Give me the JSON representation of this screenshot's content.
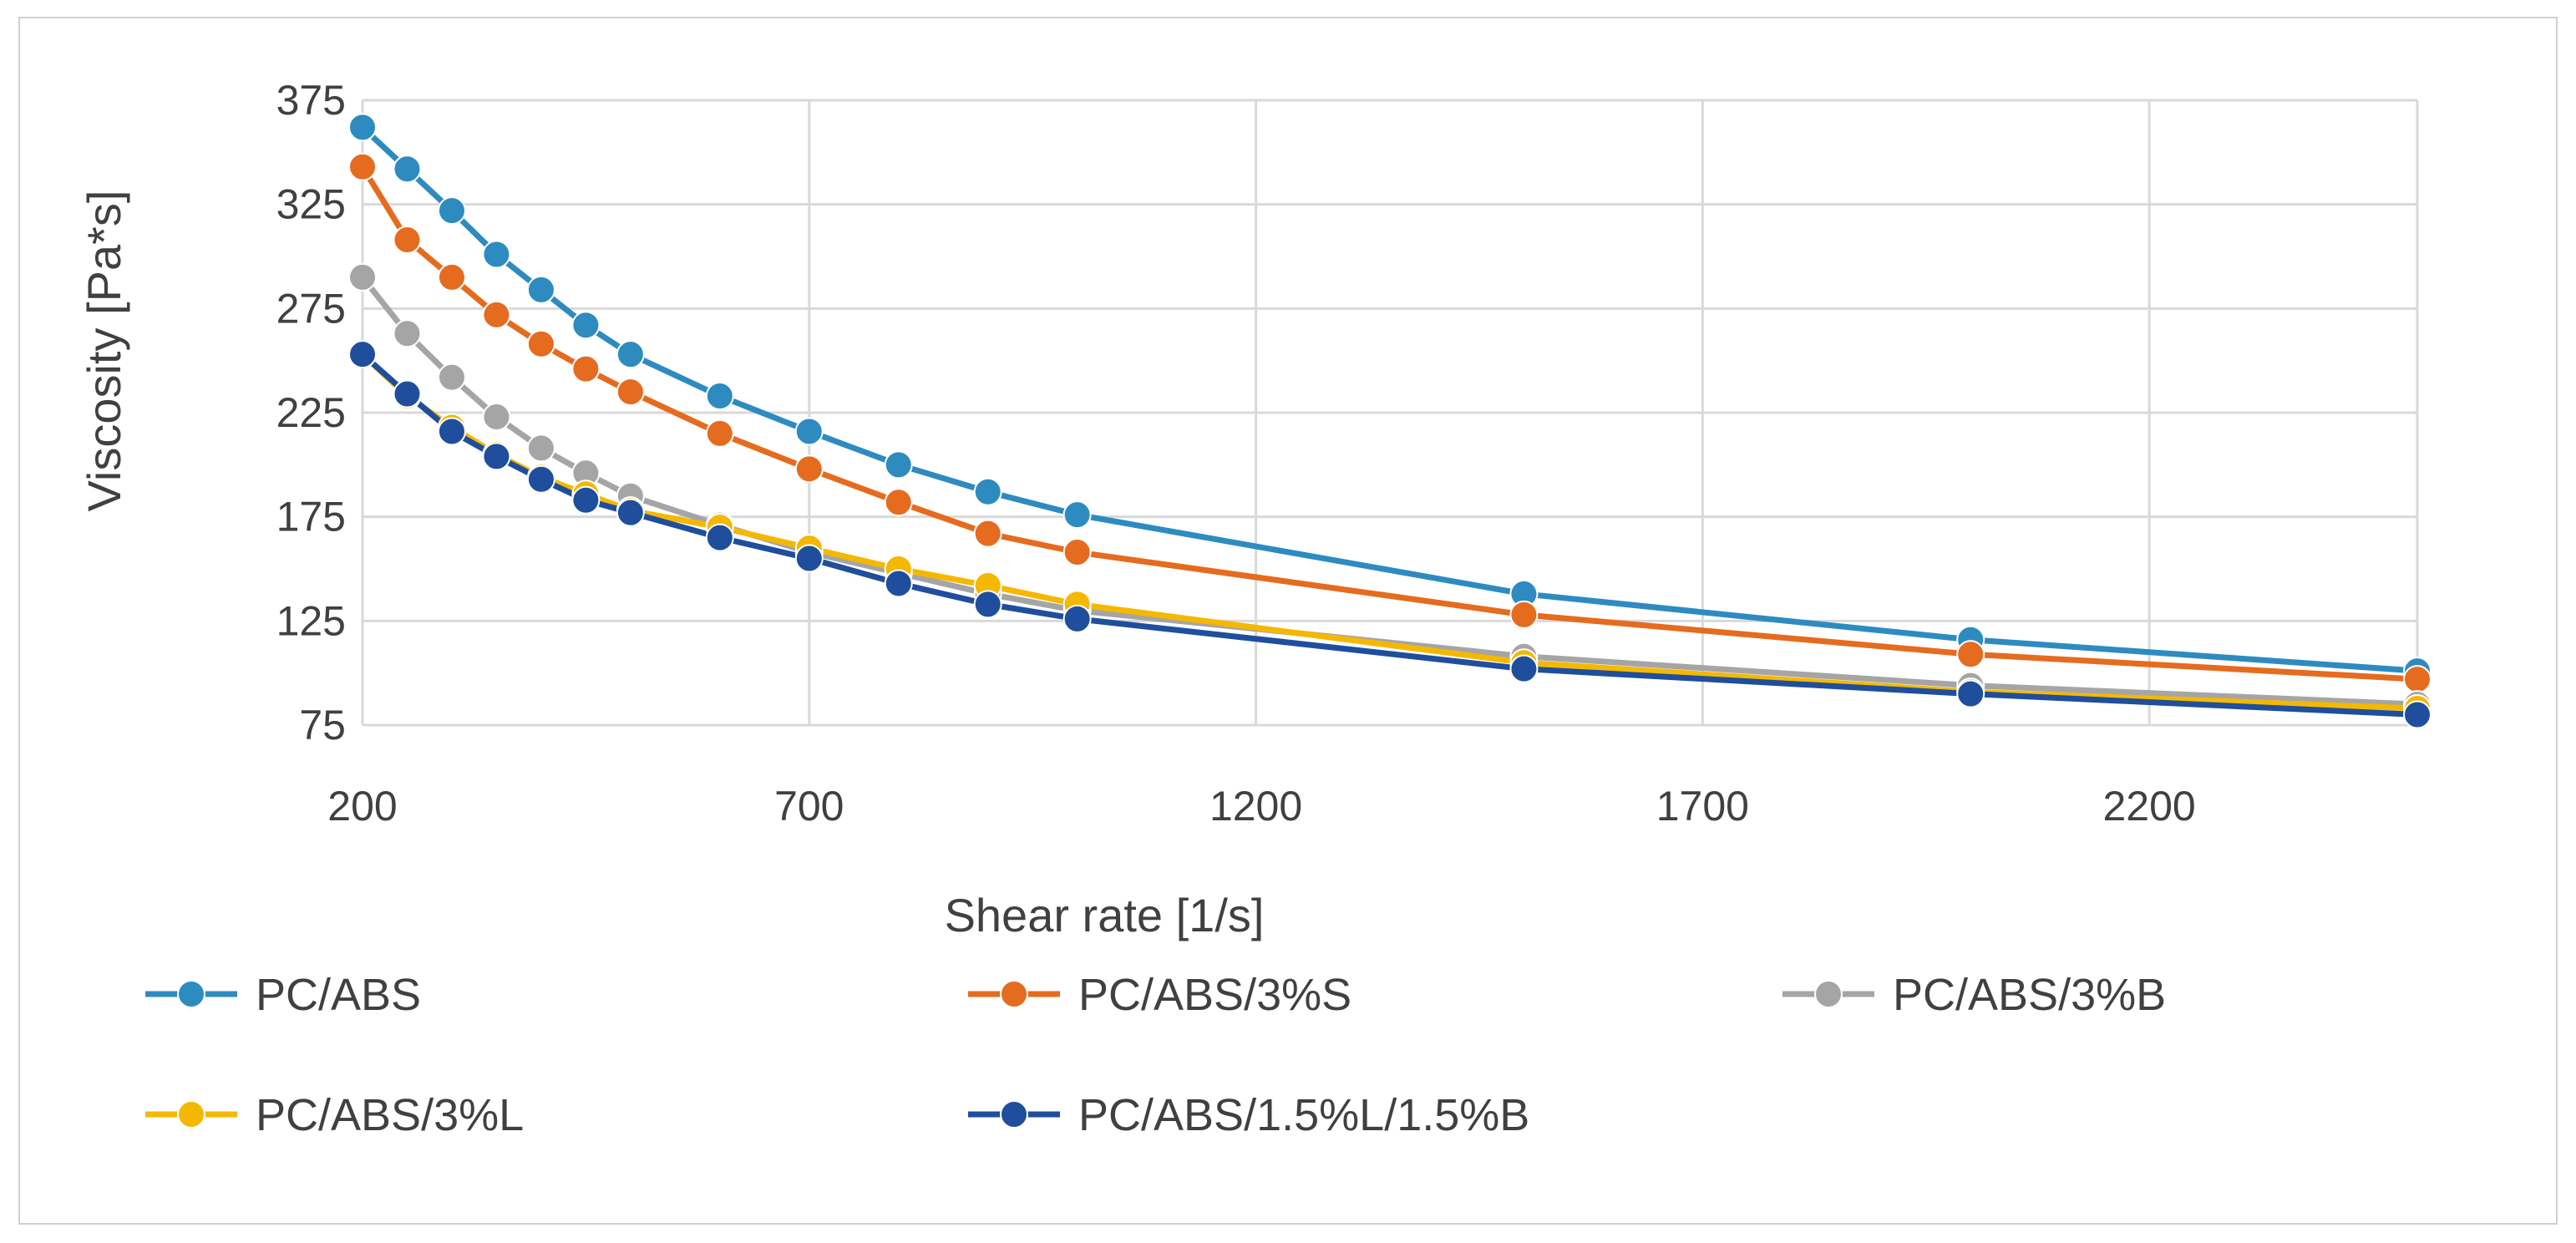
{
  "chart_data": {
    "type": "line",
    "title": "",
    "xlabel": "Shear rate [1/s]",
    "ylabel": "Viscosity [Pa*s]",
    "xlim": [
      200,
      2500
    ],
    "ylim": [
      75,
      375
    ],
    "x_ticks": [
      200,
      700,
      1200,
      1700,
      2200
    ],
    "y_ticks": [
      75,
      125,
      175,
      225,
      275,
      325,
      375
    ],
    "grid": true,
    "legend_position": "bottom",
    "x": [
      200,
      250,
      300,
      350,
      400,
      450,
      500,
      600,
      700,
      800,
      900,
      1000,
      1500,
      2000,
      2500
    ],
    "series": [
      {
        "name": "PC/ABS",
        "color": "#2e8bc0",
        "values": [
          362,
          342,
          322,
          301,
          284,
          267,
          253,
          233,
          216,
          200,
          187,
          176,
          138,
          116,
          101
        ]
      },
      {
        "name": "PC/ABS/3%S",
        "color": "#e56b1f",
        "values": [
          343,
          308,
          290,
          272,
          258,
          246,
          235,
          215,
          198,
          182,
          167,
          158,
          128,
          109,
          97
        ]
      },
      {
        "name": "PC/ABS/3%B",
        "color": "#a5a5a5",
        "values": [
          290,
          263,
          242,
          223,
          208,
          196,
          185,
          171,
          158,
          148,
          138,
          130,
          108,
          94,
          85
        ]
      },
      {
        "name": "PC/ABS/3%L",
        "color": "#f5b800",
        "values": [
          253,
          233,
          218,
          205,
          194,
          186,
          178,
          170,
          160,
          150,
          142,
          133,
          105,
          91,
          83
        ]
      },
      {
        "name": "PC/ABS/1.5%L/1.5%B",
        "color": "#1f4e9c",
        "values": [
          253,
          234,
          216,
          204,
          193,
          183,
          177,
          165,
          155,
          143,
          133,
          126,
          102,
          90,
          80
        ]
      }
    ]
  }
}
